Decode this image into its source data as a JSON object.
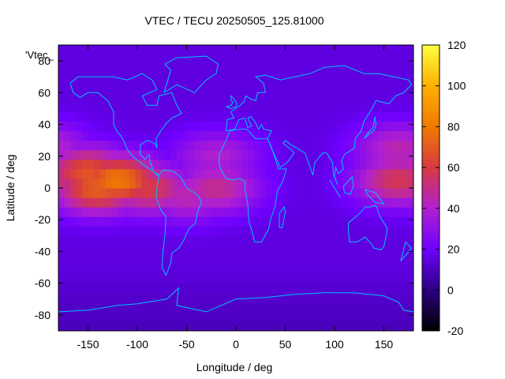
{
  "chart_data": {
    "type": "heatmap",
    "title": "VTEC / TECU 20250505_125.81000",
    "xlabel": "Longitude / deg",
    "ylabel": "Latitude / deg",
    "xlim": [
      -180,
      180
    ],
    "ylim": [
      -90,
      90
    ],
    "x_ticks": [
      -150,
      -100,
      -50,
      0,
      50,
      100,
      150
    ],
    "y_ticks": [
      -80,
      -60,
      -40,
      -20,
      0,
      20,
      40,
      60,
      80
    ],
    "colorbar": {
      "range": [
        -20,
        120
      ],
      "ticks": [
        -20,
        0,
        20,
        40,
        60,
        80,
        100,
        120
      ],
      "palette": [
        "#000000",
        "#2a0080",
        "#6f00ff",
        "#b020d0",
        "#d83a40",
        "#f07a00",
        "#ffb000",
        "#ffff40"
      ]
    },
    "legend_label": "'Vtec_",
    "background_value": 15,
    "field_peaks": [
      {
        "lon": -120,
        "lat": 5,
        "value": 80
      },
      {
        "lon": -140,
        "lat": 0,
        "value": 72
      },
      {
        "lon": -150,
        "lat": 10,
        "value": 68
      },
      {
        "lon": -90,
        "lat": 0,
        "value": 60
      },
      {
        "lon": -50,
        "lat": -5,
        "value": 45
      },
      {
        "lon": -20,
        "lat": 0,
        "value": 50
      },
      {
        "lon": -20,
        "lat": 20,
        "value": 40
      },
      {
        "lon": 165,
        "lat": 5,
        "value": 58
      },
      {
        "lon": 165,
        "lat": 25,
        "value": 45
      }
    ],
    "coastline_color": "#00c0ff"
  }
}
